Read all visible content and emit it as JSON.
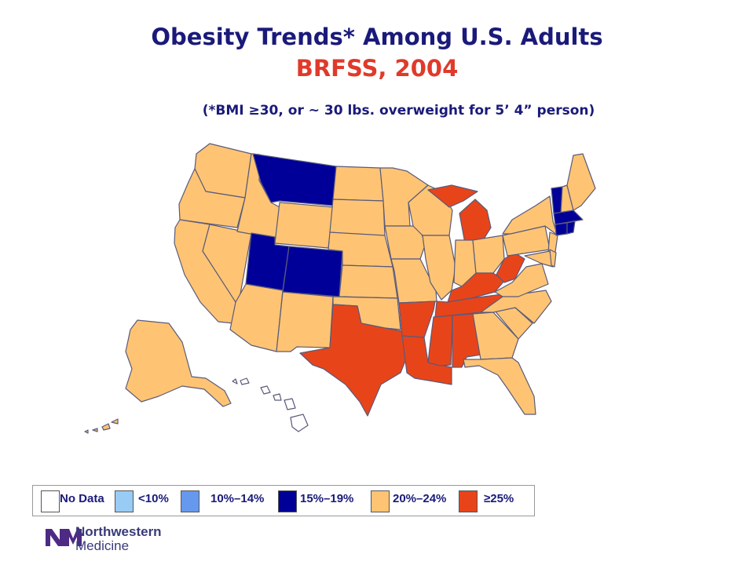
{
  "title": "Obesity Trends* Among U.S. Adults",
  "subtitle": "BRFSS, 2004",
  "note": "(*BMI ≥30, or ~ 30 lbs. overweight for 5’ 4” person)",
  "colors": {
    "title": "#1a1a7a",
    "subtitle": "#e03a2a",
    "no_data": "#ffffff",
    "lt10": "#99ccf5",
    "p10_14": "#6699ee",
    "p15_19": "#000099",
    "p20_24": "#ffc473",
    "ge25": "#e8441a"
  },
  "legend": [
    {
      "key": "no_data",
      "label": "No Data"
    },
    {
      "key": "lt10",
      "label": "<10%"
    },
    {
      "key": "p10_14",
      "label": "10%–14%"
    },
    {
      "key": "p15_19",
      "label": "15%–19%"
    },
    {
      "key": "p20_24",
      "label": "20%–24%"
    },
    {
      "key": "ge25",
      "label": "≥25%"
    }
  ],
  "states": {
    "WA": "p20_24",
    "OR": "p20_24",
    "CA": "p20_24",
    "NV": "p20_24",
    "ID": "p20_24",
    "MT": "p15_19",
    "WY": "p20_24",
    "UT": "p15_19",
    "CO": "p15_19",
    "AZ": "p20_24",
    "NM": "p20_24",
    "ND": "p20_24",
    "SD": "p20_24",
    "NE": "p20_24",
    "KS": "p20_24",
    "OK": "p20_24",
    "TX": "ge25",
    "MN": "p20_24",
    "IA": "p20_24",
    "MO": "p20_24",
    "AR": "ge25",
    "LA": "ge25",
    "WI": "p20_24",
    "IL": "p20_24",
    "MI": "ge25",
    "IN": "p20_24",
    "OH": "p20_24",
    "KY": "ge25",
    "TN": "ge25",
    "MS": "ge25",
    "AL": "ge25",
    "GA": "p20_24",
    "FL": "p20_24",
    "SC": "p20_24",
    "NC": "p20_24",
    "VA": "p20_24",
    "WV": "ge25",
    "PA": "p20_24",
    "NY": "p20_24",
    "VT": "p15_19",
    "NH": "p20_24",
    "ME": "p20_24",
    "MA": "p15_19",
    "CT": "p15_19",
    "RI": "p15_19",
    "NJ": "p20_24",
    "DE": "p20_24",
    "MD": "p20_24",
    "AK": "p20_24",
    "HI": "no_data"
  },
  "logo": {
    "line1": "Northwestern",
    "line2": "Medicine",
    "mark": "NM"
  }
}
